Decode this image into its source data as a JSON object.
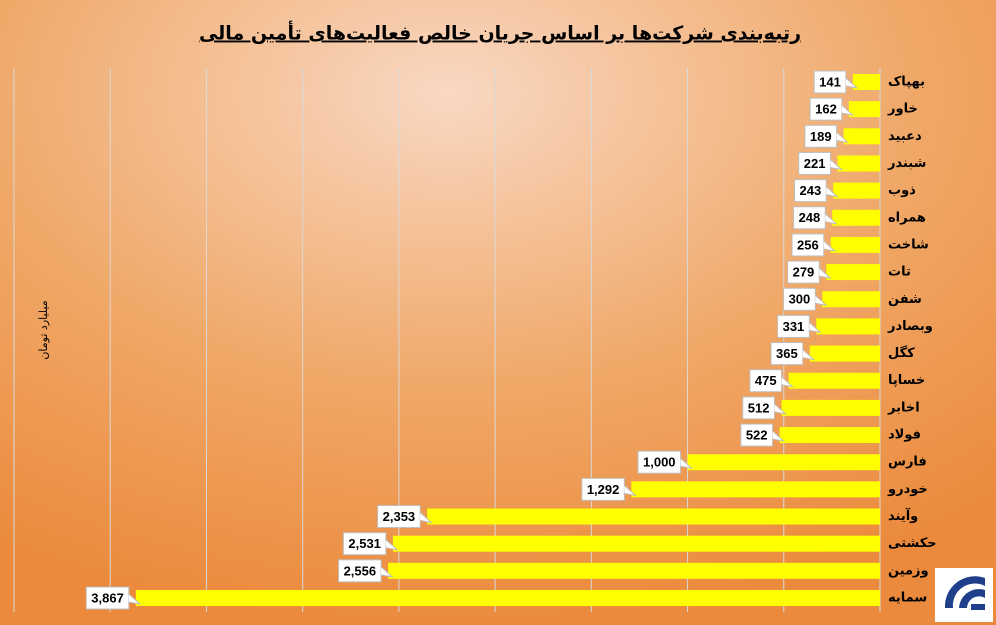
{
  "chart_data": {
    "type": "bar",
    "orientation": "horizontal",
    "reversed_x": true,
    "title": "رتبه‌بندی شرکت‌ها بر اساس جریان خالص فعالیت‌های تأمین مالی",
    "y_axis_label": "میلیارد تومان",
    "categories": [
      "بهپاک",
      "خاور",
      "دعبید",
      "شبندر",
      "ذوب",
      "همراه",
      "شاخت",
      "تات",
      "شفن",
      "وبصادر",
      "کگل",
      "خساپا",
      "اخابر",
      "فولاد",
      "فارس",
      "خودرو",
      "وآیند",
      "حکشتی",
      "وزمین",
      "سمایه"
    ],
    "values": [
      141,
      162,
      189,
      221,
      243,
      248,
      256,
      279,
      300,
      331,
      365,
      475,
      512,
      522,
      1000,
      1292,
      2353,
      2531,
      2556,
      3867
    ],
    "value_labels": [
      "141",
      "162",
      "189",
      "221",
      "243",
      "248",
      "256",
      "279",
      "300",
      "331",
      "365",
      "475",
      "512",
      "522",
      "1,000",
      "1,292",
      "2,353",
      "2,531",
      "2,556",
      "3,867"
    ],
    "color": "#ffff00",
    "xlim": [
      0,
      4500
    ],
    "xticks": [
      0,
      500,
      1000,
      1500,
      2000,
      2500,
      3000,
      3500,
      4000,
      4500
    ],
    "grid": true
  }
}
